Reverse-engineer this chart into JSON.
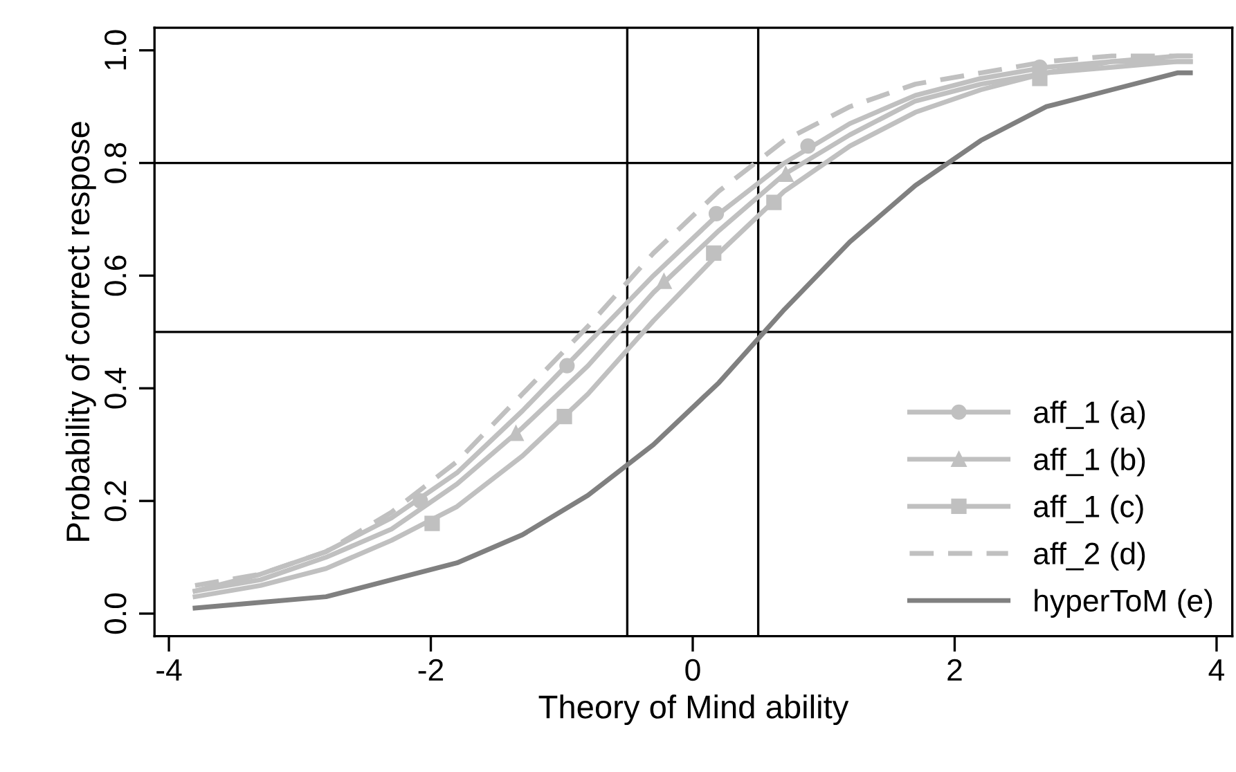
{
  "chart_data": {
    "type": "line",
    "xlabel": "Theory of Mind ability",
    "ylabel": "Probability of correct respose",
    "xlim": [
      -4.11,
      4.12
    ],
    "ylim": [
      -0.04,
      1.04
    ],
    "xticks": [
      -4,
      -2,
      0,
      2,
      4
    ],
    "yticks": [
      {
        "value": 0,
        "label": "0.0"
      },
      {
        "value": 0.2,
        "label": "0.2"
      },
      {
        "value": 0.4,
        "label": "0.4"
      },
      {
        "value": 0.6,
        "label": "0.6"
      },
      {
        "value": 0.8,
        "label": "0.8"
      },
      {
        "value": 1,
        "label": "1.0"
      }
    ],
    "grid": false,
    "legend": "bottom right",
    "x": [
      -3.8,
      -3.3,
      -2.8,
      -2.3,
      -1.8,
      -1.3,
      -0.8,
      -0.3,
      0.2,
      0.7,
      1.2,
      1.7,
      2.2,
      2.7,
      3.2,
      3.7,
      3.8
    ],
    "series": [
      {
        "name": "aff_1 (a)",
        "color": "#c0c0c0",
        "line_style": "solid",
        "values": [
          0.04,
          0.07,
          0.11,
          0.17,
          0.25,
          0.36,
          0.48,
          0.6,
          0.71,
          0.8,
          0.87,
          0.92,
          0.95,
          0.97,
          0.98,
          0.99,
          0.99
        ]
      },
      {
        "type": "scatter",
        "color": "#c0c0c0",
        "marker": "circle",
        "x": [
          -2.08,
          -0.96,
          0.18,
          0.88,
          2.65
        ],
        "values": [
          0.2,
          0.44,
          0.71,
          0.83,
          0.97
        ]
      },
      {
        "name": "aff_1 (b)",
        "color": "#c0c0c0",
        "line_style": "solid",
        "values": [
          0.04,
          0.06,
          0.1,
          0.15,
          0.23,
          0.33,
          0.44,
          0.57,
          0.68,
          0.78,
          0.85,
          0.91,
          0.94,
          0.96,
          0.98,
          0.98,
          0.98
        ]
      },
      {
        "type": "scatter",
        "color": "#c0c0c0",
        "marker": "triangle",
        "x": [
          -1.35,
          -0.22,
          0.71
        ],
        "values": [
          0.32,
          0.59,
          0.78
        ]
      },
      {
        "name": "aff_1 (c)",
        "color": "#c0c0c0",
        "line_style": "solid",
        "values": [
          0.03,
          0.05,
          0.08,
          0.13,
          0.19,
          0.28,
          0.39,
          0.52,
          0.64,
          0.75,
          0.83,
          0.89,
          0.93,
          0.96,
          0.97,
          0.98,
          0.98
        ]
      },
      {
        "type": "scatter",
        "color": "#c0c0c0",
        "marker": "square",
        "x": [
          -1.99,
          -0.98,
          0.16,
          0.62,
          2.65
        ],
        "values": [
          0.16,
          0.35,
          0.64,
          0.73,
          0.95
        ]
      },
      {
        "name": "aff_2 (d)",
        "color": "#c0c0c0",
        "line_style": "dashed",
        "values": [
          0.05,
          0.07,
          0.11,
          0.18,
          0.27,
          0.39,
          0.51,
          0.64,
          0.75,
          0.84,
          0.9,
          0.94,
          0.96,
          0.98,
          0.99,
          0.99,
          0.99
        ]
      },
      {
        "name": "hyperToM (e)",
        "color": "#808080",
        "line_style": "solid",
        "values": [
          0.01,
          0.02,
          0.03,
          0.06,
          0.09,
          0.14,
          0.21,
          0.3,
          0.41,
          0.54,
          0.66,
          0.76,
          0.84,
          0.9,
          0.93,
          0.96,
          0.96
        ]
      }
    ],
    "ref_lines": [
      {
        "axis": "x",
        "value": -0.5,
        "color": "#000000"
      },
      {
        "axis": "x",
        "value": 0.5,
        "color": "#000000"
      },
      {
        "axis": "y",
        "value": 0.8,
        "color": "#000000"
      },
      {
        "axis": "y",
        "value": 0.5,
        "color": "#000000"
      }
    ]
  }
}
